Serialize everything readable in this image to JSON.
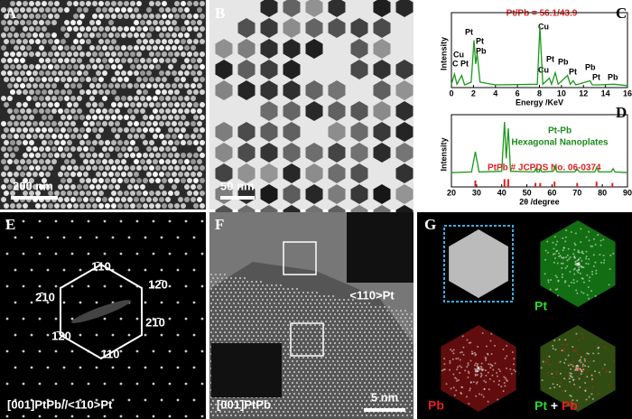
{
  "panels": {
    "a": {
      "label": "A",
      "scale": "200 nm"
    },
    "b": {
      "label": "B",
      "scale": "50 nm"
    },
    "e": {
      "label": "E",
      "spots": [
        "1̄10",
        "12̄0",
        "2̄10",
        "21̄0",
        "1̄20",
        "110"
      ],
      "caption": "[001]PtPb//<110>Pt"
    },
    "f": {
      "label": "F",
      "inset": "<110>Pt",
      "caption": "[001]PtPb",
      "scale": "5 nm"
    },
    "g": {
      "label": "G",
      "pt": "Pt",
      "pb": "Pb",
      "merge": [
        "Pt",
        "+",
        "Pb"
      ]
    }
  },
  "chart_data": [
    {
      "type": "line",
      "label": "C",
      "annotation": "Pt/Pb = 56.1/43.9",
      "xlabel": "Energy /KeV",
      "ylabel": "Intensity",
      "peak_labels": [
        "C",
        "Cu",
        "Pt",
        "Pt",
        "Pt",
        "Pb",
        "Cu",
        "Pt",
        "Cu",
        "Pb",
        "Pt",
        "Pb",
        "Pt",
        "Pb"
      ],
      "x": [
        0,
        0.28,
        0.5,
        0.93,
        1.2,
        1.8,
        2.05,
        2.2,
        2.34,
        2.6,
        4,
        7.8,
        8.04,
        8.3,
        8.9,
        9.1,
        9.44,
        9.7,
        10.55,
        10.8,
        11.07,
        11.3,
        12.6,
        12.8,
        13.3,
        14.76,
        16
      ],
      "series": [
        {
          "color": "#1a9a1a",
          "values": [
            5,
            20,
            5,
            18,
            4,
            8,
            70,
            35,
            50,
            8,
            4,
            5,
            90,
            5,
            14,
            5,
            22,
            5,
            18,
            5,
            10,
            4,
            10,
            4,
            4,
            5,
            3
          ]
        }
      ],
      "xlim": [
        0,
        16
      ],
      "xticks": [
        0,
        2,
        4,
        6,
        8,
        10,
        12,
        14,
        16
      ],
      "ylim": [
        0,
        100
      ]
    },
    {
      "type": "line",
      "label": "D",
      "xlabel": "2θ /degree",
      "ylabel": "Intensity",
      "legend": [
        "Pt-Pb",
        "Hexagonal Nanoplates"
      ],
      "reference": "PtPb # JCPDS No. 06-0374",
      "x": [
        20,
        28,
        29.5,
        31,
        40,
        41.1,
        41.8,
        42.6,
        43.5,
        53,
        53.5,
        54,
        55,
        55.3,
        56,
        60.5,
        61.2,
        62,
        69,
        70,
        71,
        77,
        77.8,
        78.5,
        83.5,
        84.3,
        85,
        90
      ],
      "series": [
        {
          "color": "#1a9a1a",
          "values": [
            22,
            23,
            54,
            23,
            24,
            100,
            44,
            90,
            24,
            23,
            28,
            23,
            23,
            28,
            23,
            24,
            32,
            23,
            23,
            27,
            23,
            23,
            30,
            23,
            23,
            28,
            23,
            22
          ]
        }
      ],
      "ref_x": [
        29.5,
        41.1,
        42.6,
        53.4,
        55.3,
        61,
        70,
        77.7,
        84
      ],
      "ref_values": [
        10,
        12,
        12,
        6,
        6,
        8,
        6,
        8,
        6
      ],
      "ref_color": "#e0201e",
      "xlim": [
        20,
        90
      ],
      "xticks": [
        20,
        30,
        40,
        50,
        60,
        70,
        80,
        90
      ],
      "ylim": [
        0,
        100
      ]
    }
  ]
}
